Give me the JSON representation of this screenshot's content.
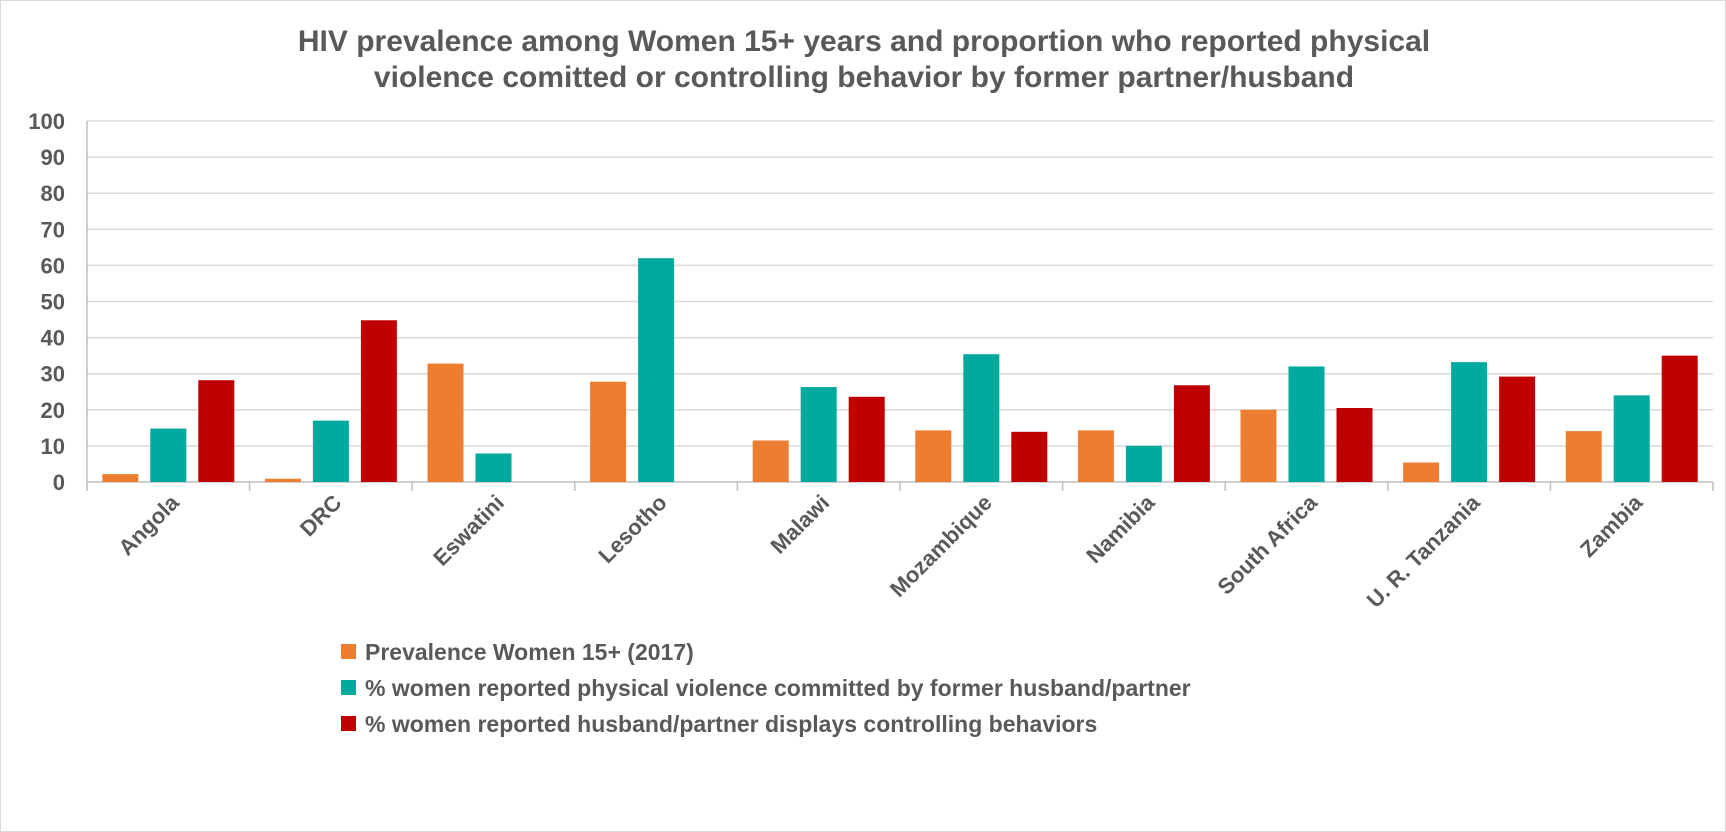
{
  "chart_data": {
    "type": "bar",
    "title_lines": [
      "HIV prevalence among Women 15+ years and proportion who reported physical",
      "violence comitted or controlling behavior by former partner/husband"
    ],
    "xlabel": "",
    "ylabel": "",
    "ylim": [
      0,
      100
    ],
    "yticks": [
      0,
      10,
      20,
      30,
      40,
      50,
      60,
      70,
      80,
      90,
      100
    ],
    "grid": true,
    "legend_position": "bottom",
    "categories": [
      "Angola",
      "DRC",
      "Eswatini",
      "Lesotho",
      "Malawi",
      "Mozambique",
      "Namibia",
      "South Africa",
      "U. R. Tanzania",
      "Zambia"
    ],
    "series": [
      {
        "name": "Prevalence Women 15+ (2017)",
        "color": "#ED7D31",
        "values": [
          2.2,
          0.9,
          32.8,
          27.8,
          11.5,
          14.3,
          14.3,
          20.0,
          5.4,
          14.1
        ]
      },
      {
        "name": "% women reported physical violence committed by former husband/partner",
        "color": "#00A99D",
        "values": [
          14.8,
          17.0,
          7.9,
          62.0,
          26.3,
          35.4,
          10.0,
          32.0,
          33.2,
          24.0
        ]
      },
      {
        "name": "% women reported husband/partner displays controlling behaviors",
        "color": "#C00000",
        "values": [
          28.2,
          44.8,
          null,
          null,
          23.6,
          13.9,
          26.8,
          20.5,
          29.2,
          35.0
        ]
      }
    ]
  }
}
